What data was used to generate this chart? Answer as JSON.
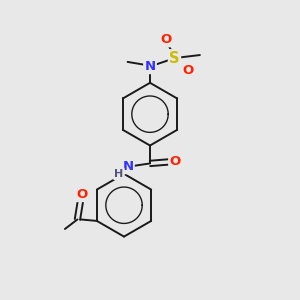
{
  "bg_color": "#e8e8e8",
  "bond_color": "#1a1a1a",
  "atom_colors": {
    "N": "#3333ff",
    "O": "#ff2200",
    "S": "#ccbb00",
    "C": "#1a1a1a",
    "H": "#555577"
  },
  "figsize": [
    3.0,
    3.0
  ],
  "dpi": 100,
  "lw": 1.4,
  "fs": 9.5
}
